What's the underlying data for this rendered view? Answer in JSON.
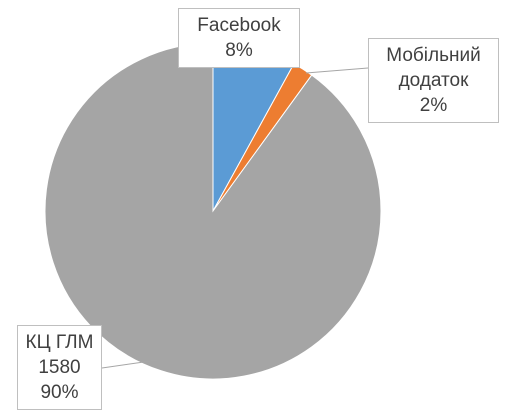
{
  "chart_data": {
    "type": "pie",
    "categories": [
      "Facebook",
      "Мобільний додаток",
      "КЦ ГЛМ"
    ],
    "values": [
      8,
      2,
      90
    ],
    "value_labels": [
      "8%",
      "2%",
      "90%"
    ],
    "counts": [
      null,
      null,
      1580
    ],
    "colors": [
      "#5b9bd5",
      "#ed7d31",
      "#a5a5a5"
    ]
  }
}
